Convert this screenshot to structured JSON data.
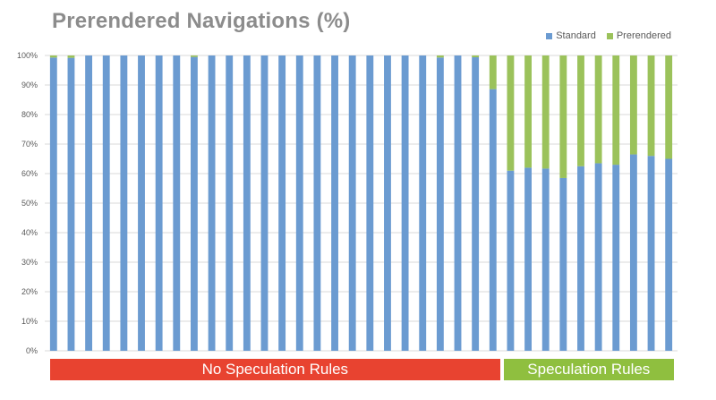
{
  "chart_data": {
    "type": "bar",
    "stacked": true,
    "title": "Prerendered Navigations (%)",
    "xlabel": "",
    "ylabel": "",
    "ylim": [
      0,
      100
    ],
    "yticks": [
      "0%",
      "10%",
      "20%",
      "30%",
      "40%",
      "50%",
      "60%",
      "70%",
      "80%",
      "90%",
      "100%"
    ],
    "grid": true,
    "legend_position": "top-right",
    "series": [
      {
        "name": "Standard",
        "color": "#6b9bd1",
        "values": [
          99.3,
          99.2,
          100,
          100,
          100,
          100,
          100,
          100,
          99.5,
          100,
          100,
          100,
          100,
          100,
          100,
          100,
          100,
          100,
          100,
          100,
          100,
          100,
          99.3,
          100,
          99.4,
          88.6,
          61,
          62,
          61.7,
          58.5,
          62.5,
          63.5,
          63,
          66.5,
          66,
          65
        ]
      },
      {
        "name": "Prerendered",
        "color": "#9bc25b",
        "values": [
          0.7,
          0.8,
          0,
          0,
          0,
          0,
          0,
          0,
          0.5,
          0,
          0,
          0,
          0,
          0,
          0,
          0,
          0,
          0,
          0,
          0,
          0,
          0,
          0.7,
          0,
          0.6,
          11.4,
          39,
          38,
          38.3,
          41.5,
          37.5,
          36.5,
          37,
          33.5,
          34,
          35
        ]
      }
    ],
    "groups": [
      {
        "label": "No Speculation Rules",
        "color": "#e84330",
        "count": 26
      },
      {
        "label": "Speculation Rules",
        "color": "#8fbf3f",
        "count": 10
      }
    ]
  }
}
